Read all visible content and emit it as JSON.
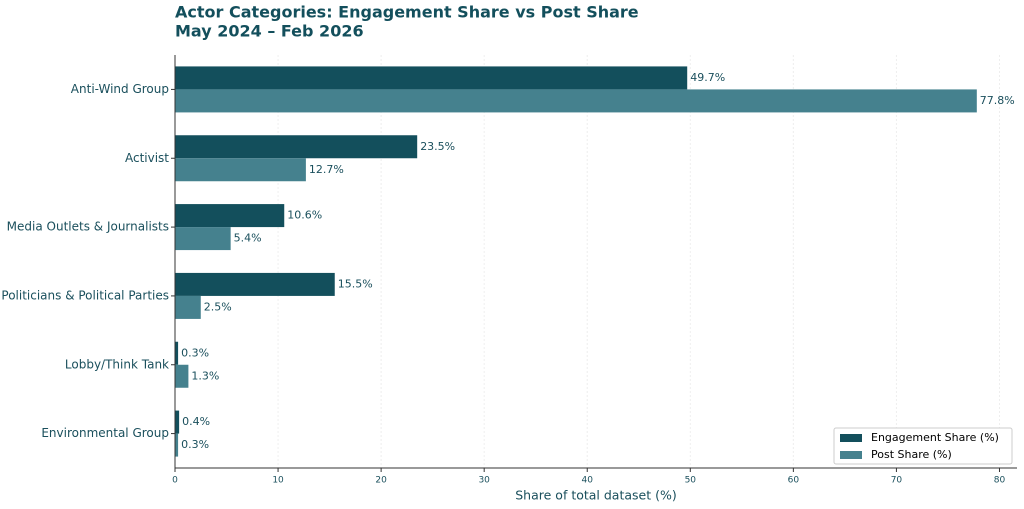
{
  "chart_data": {
    "type": "hbar",
    "title": "Actor Categories: Engagement Share vs Post Share",
    "subtitle": "May 2024 – Feb 2026",
    "x_label": "Share of total dataset (%)",
    "categories": [
      "Anti-Wind Group",
      "Activist",
      "Media Outlets & Journalists",
      "Politicians & Political Parties",
      "Lobby/Think Tank",
      "Environmental Group"
    ],
    "series": [
      {
        "name": "Engagement Share (%)",
        "color": "#134f5c",
        "values": [
          49.7,
          23.5,
          10.6,
          15.5,
          0.3,
          0.4
        ],
        "value_labels": [
          "49.7%",
          "23.5%",
          "10.6%",
          "15.5%",
          "0.3%",
          "0.4%"
        ]
      },
      {
        "name": "Post Share (%)",
        "color": "#45818e",
        "values": [
          77.8,
          12.7,
          5.4,
          2.5,
          1.3,
          0.3
        ],
        "value_labels": [
          "77.8%",
          "12.7%",
          "5.4%",
          "2.5%",
          "1.3%",
          "0.3%"
        ]
      }
    ],
    "xlim": [
      0,
      81.7
    ],
    "xticks": [
      0,
      10,
      20,
      30,
      40,
      50,
      60,
      70,
      80
    ],
    "grid": true,
    "legend": "lower right"
  }
}
